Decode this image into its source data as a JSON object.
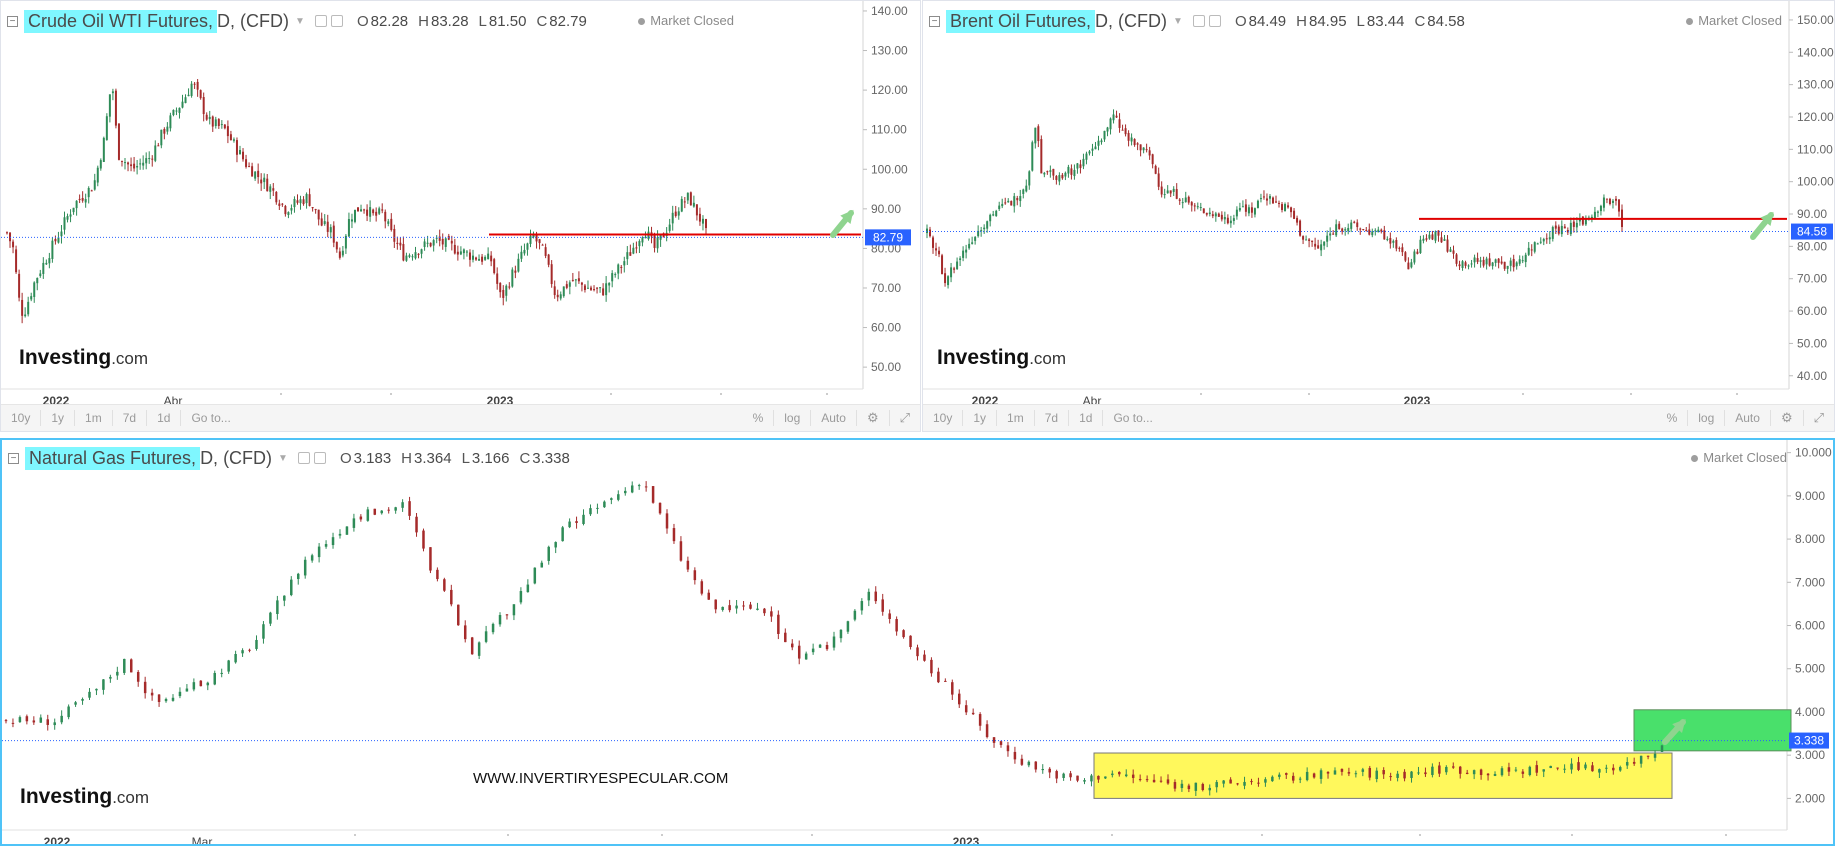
{
  "panels": {
    "wti": {
      "title": "Crude Oil WTI Futures,",
      "suffix": "D,  (CFD)",
      "ohlc": {
        "o": "82.28",
        "h": "83.28",
        "l": "81.50",
        "c": "82.79"
      },
      "market_status": "Market Closed",
      "logo_main": "Investing",
      "logo_suffix": ".com",
      "toolbar": [
        "10y",
        "1y",
        "1m",
        "7d",
        "1d",
        "Go to..."
      ],
      "toolbar_right": [
        "%",
        "log",
        "Auto"
      ]
    },
    "brent": {
      "title": "Brent Oil Futures,",
      "suffix": "D,  (CFD)",
      "ohlc": {
        "o": "84.49",
        "h": "84.95",
        "l": "83.44",
        "c": "84.58"
      },
      "market_status": "Market Closed",
      "logo_main": "Investing",
      "logo_suffix": ".com",
      "toolbar": [
        "10y",
        "1y",
        "1m",
        "7d",
        "1d",
        "Go to..."
      ],
      "toolbar_right": [
        "%",
        "log",
        "Auto"
      ]
    },
    "gas": {
      "title": "Natural Gas Futures,",
      "suffix": "D,  (CFD)",
      "ohlc": {
        "o": "3.183",
        "h": "3.364",
        "l": "3.166",
        "c": "3.338"
      },
      "market_status": "Market Closed",
      "logo_main": "Investing",
      "logo_suffix": ".com",
      "watermark": "WWW.INVERTIRYESPECULAR.COM"
    }
  },
  "colors": {
    "up": "#2e8b57",
    "down": "#a52a2a",
    "resistance": "#e00000",
    "price_tag": "#2962ff",
    "title_highlight": "#7ff7ff",
    "range_box": "#fff85c",
    "breakout_box": "#49e06b",
    "arrow": "#8fd48f"
  },
  "icons": {
    "collapse": "minus-square-icon",
    "settings": "gear-icon",
    "fullscreen": "expand-icon"
  },
  "chart_data": [
    {
      "name": "Crude Oil WTI Futures",
      "type": "candlestick",
      "x_ticks": [
        "2022",
        "Abr",
        "2023"
      ],
      "y_ticks": [
        "140.00",
        "130.00",
        "120.00",
        "110.00",
        "100.00",
        "90.00",
        "80.00",
        "70.00",
        "60.00",
        "50.00"
      ],
      "ylim": [
        47,
        141
      ],
      "last_price": 82.79,
      "resistance_level": 83.5,
      "anchors": [
        [
          0,
          84
        ],
        [
          6,
          80
        ],
        [
          12,
          67
        ],
        [
          16,
          63
        ],
        [
          28,
          72
        ],
        [
          44,
          80
        ],
        [
          66,
          91
        ],
        [
          86,
          96
        ],
        [
          96,
          107
        ],
        [
          104,
          123
        ],
        [
          110,
          104
        ],
        [
          124,
          100
        ],
        [
          142,
          103
        ],
        [
          158,
          111
        ],
        [
          176,
          118
        ],
        [
          184,
          122
        ],
        [
          200,
          112
        ],
        [
          216,
          110
        ],
        [
          238,
          101
        ],
        [
          262,
          95
        ],
        [
          276,
          90
        ],
        [
          298,
          93
        ],
        [
          312,
          86
        ],
        [
          322,
          84
        ],
        [
          330,
          78
        ],
        [
          340,
          88
        ],
        [
          352,
          91
        ],
        [
          364,
          88
        ],
        [
          372,
          89
        ],
        [
          382,
          83
        ],
        [
          394,
          78
        ],
        [
          408,
          80
        ],
        [
          426,
          82
        ],
        [
          444,
          80
        ],
        [
          462,
          78
        ],
        [
          480,
          77
        ],
        [
          490,
          67
        ],
        [
          500,
          73
        ],
        [
          512,
          79
        ],
        [
          522,
          83
        ],
        [
          532,
          79
        ],
        [
          544,
          68
        ],
        [
          560,
          72
        ],
        [
          576,
          70
        ],
        [
          590,
          69
        ],
        [
          604,
          74
        ],
        [
          618,
          79
        ],
        [
          632,
          85
        ],
        [
          642,
          80
        ],
        [
          652,
          84
        ],
        [
          664,
          90
        ],
        [
          676,
          93
        ],
        [
          684,
          89
        ],
        [
          690,
          86
        ],
        [
          694,
          82.8
        ]
      ]
    },
    {
      "name": "Brent Oil Futures",
      "type": "candlestick",
      "x_ticks": [
        "2022",
        "Abr",
        "2023"
      ],
      "y_ticks": [
        "150.00",
        "140.00",
        "130.00",
        "120.00",
        "110.00",
        "100.00",
        "90.00",
        "80.00",
        "70.00",
        "60.00",
        "50.00",
        "40.00"
      ],
      "ylim": [
        39,
        154
      ],
      "last_price": 84.58,
      "resistance_level": 88.5,
      "anchors": [
        [
          0,
          84
        ],
        [
          10,
          78
        ],
        [
          18,
          70
        ],
        [
          28,
          74
        ],
        [
          44,
          82
        ],
        [
          64,
          90
        ],
        [
          86,
          94
        ],
        [
          100,
          100
        ],
        [
          108,
          118
        ],
        [
          114,
          104
        ],
        [
          130,
          102
        ],
        [
          148,
          104
        ],
        [
          168,
          111
        ],
        [
          186,
          120
        ],
        [
          200,
          113
        ],
        [
          222,
          108
        ],
        [
          234,
          97
        ],
        [
          250,
          96
        ],
        [
          266,
          92
        ],
        [
          286,
          90
        ],
        [
          300,
          88
        ],
        [
          314,
          93
        ],
        [
          324,
          91
        ],
        [
          336,
          96
        ],
        [
          350,
          93
        ],
        [
          362,
          91
        ],
        [
          374,
          83
        ],
        [
          390,
          79
        ],
        [
          408,
          86
        ],
        [
          426,
          86
        ],
        [
          446,
          84
        ],
        [
          466,
          82
        ],
        [
          480,
          73
        ],
        [
          494,
          82
        ],
        [
          508,
          84
        ],
        [
          518,
          80
        ],
        [
          530,
          75
        ],
        [
          548,
          75
        ],
        [
          566,
          75
        ],
        [
          584,
          74
        ],
        [
          604,
          80
        ],
        [
          624,
          85
        ],
        [
          644,
          86
        ],
        [
          660,
          89
        ],
        [
          676,
          94
        ],
        [
          688,
          93
        ],
        [
          694,
          84.6
        ]
      ]
    },
    {
      "name": "Natural Gas Futures",
      "type": "candlestick",
      "x_ticks": [
        "2022",
        "Mar",
        "2023"
      ],
      "y_ticks": [
        "10.000",
        "9.000",
        "8.000",
        "7.000",
        "6.000",
        "5.000",
        "4.000",
        "3.000",
        "2.000"
      ],
      "ylim": [
        1.5,
        10.2
      ],
      "last_price": 3.338,
      "range_box": [
        2.0,
        3.05
      ],
      "breakout_box": [
        3.1,
        4.05
      ],
      "anchors": [
        [
          0,
          3.8
        ],
        [
          50,
          3.8
        ],
        [
          90,
          4.5
        ],
        [
          120,
          5.2
        ],
        [
          150,
          4.2
        ],
        [
          200,
          4.7
        ],
        [
          250,
          5.6
        ],
        [
          300,
          7.5
        ],
        [
          350,
          8.5
        ],
        [
          400,
          8.8
        ],
        [
          430,
          7.2
        ],
        [
          470,
          5.4
        ],
        [
          510,
          6.5
        ],
        [
          560,
          8.2
        ],
        [
          600,
          8.8
        ],
        [
          640,
          9.4
        ],
        [
          680,
          7.5
        ],
        [
          710,
          6.4
        ],
        [
          760,
          6.4
        ],
        [
          800,
          5.2
        ],
        [
          830,
          5.6
        ],
        [
          870,
          6.8
        ],
        [
          900,
          5.8
        ],
        [
          930,
          5.0
        ],
        [
          960,
          4.2
        ],
        [
          990,
          3.4
        ],
        [
          1020,
          2.9
        ],
        [
          1050,
          2.6
        ],
        [
          1080,
          2.4
        ],
        [
          1110,
          2.6
        ],
        [
          1150,
          2.4
        ],
        [
          1200,
          2.25
        ],
        [
          1250,
          2.4
        ],
        [
          1300,
          2.5
        ],
        [
          1350,
          2.6
        ],
        [
          1400,
          2.55
        ],
        [
          1450,
          2.7
        ],
        [
          1500,
          2.6
        ],
        [
          1550,
          2.7
        ],
        [
          1600,
          2.7
        ],
        [
          1630,
          2.8
        ],
        [
          1660,
          3.1
        ],
        [
          1668,
          3.338
        ]
      ]
    }
  ]
}
